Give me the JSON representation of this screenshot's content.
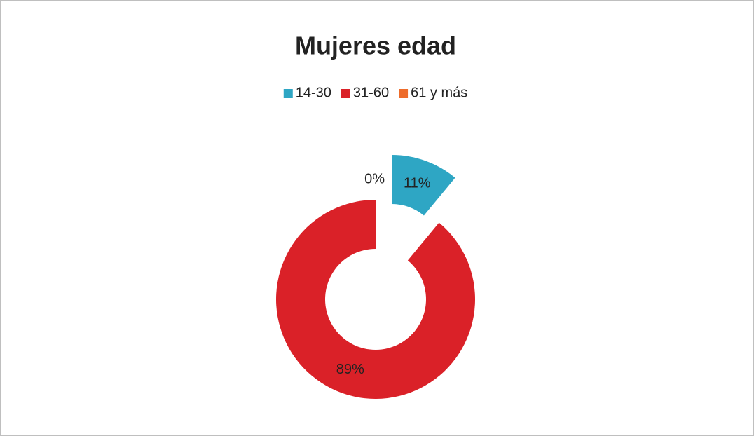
{
  "chart_data": {
    "type": "doughnut",
    "title": "Mujeres edad",
    "categories": [
      "14-30",
      "31-60",
      "61 y más"
    ],
    "values": [
      11,
      89,
      0
    ],
    "value_labels": [
      "11%",
      "89%",
      "0%"
    ],
    "colors": [
      "#2ea6c4",
      "#da2128",
      "#ee6c2b"
    ],
    "legend": "top"
  }
}
